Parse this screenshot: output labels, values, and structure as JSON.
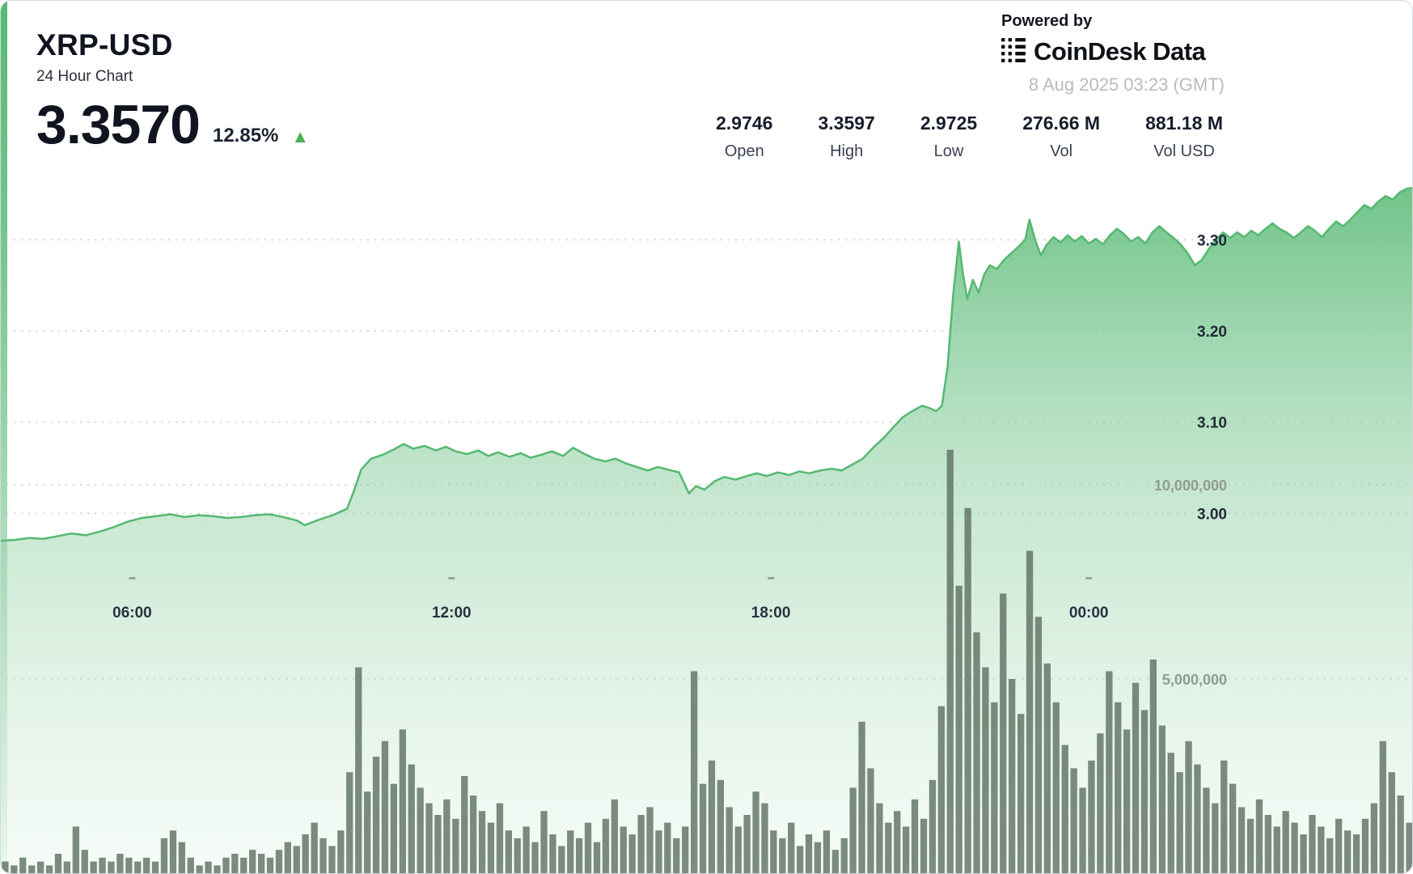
{
  "header": {
    "symbol": "XRP-USD",
    "subtitle": "24 Hour Chart",
    "price": "3.3570",
    "change_percent": "12.85%",
    "change_direction": "up",
    "stats": [
      {
        "value": "2.9746",
        "label": "Open"
      },
      {
        "value": "3.3597",
        "label": "High"
      },
      {
        "value": "2.9725",
        "label": "Low"
      },
      {
        "value": "276.66 M",
        "label": "Vol"
      },
      {
        "value": "881.18 M",
        "label": "Vol USD"
      }
    ]
  },
  "branding": {
    "powered_by": "Powered by",
    "brand": "CoinDesk Data",
    "timestamp": "8 Aug 2025 03:23 (GMT)"
  },
  "icons": {
    "up_arrow": "▲"
  },
  "colors": {
    "accent_green": "#4caf50",
    "line_green": "#55b871",
    "area_top": "#57b974",
    "area_mid": "#8fd0a3",
    "area_bottom": "#eaf6ee",
    "volume_bar": "#5f7164",
    "grid_dot": "#c6cdc6",
    "tick_dash": "#98a59b",
    "text_dark": "#131824",
    "timestamp_gray": "#b7bbc1"
  },
  "chart_data": {
    "type": "area",
    "title": "XRP-USD 24 Hour Chart",
    "grid": "dotted",
    "price_axis": {
      "min": 2.94,
      "max": 3.365,
      "ticks": [
        3.0,
        3.1,
        3.2,
        3.3
      ],
      "unit": "USD"
    },
    "volume_axis": {
      "ticks": [
        {
          "value": 5,
          "label": "5,000,000"
        },
        {
          "value": 10,
          "label": "10,000,000"
        }
      ],
      "unit": "volume"
    },
    "x_axis": {
      "ticks": [
        {
          "label": "06:00",
          "f": 0.093
        },
        {
          "label": "12:00",
          "f": 0.319
        },
        {
          "label": "18:00",
          "f": 0.545
        },
        {
          "label": "00:00",
          "f": 0.77
        }
      ]
    },
    "price_series": {
      "name": "XRP-USD price",
      "open": 2.9746,
      "high": 3.3597,
      "low": 2.9725,
      "last": 3.357,
      "points": [
        [
          0,
          2.97
        ],
        [
          0.01,
          2.971
        ],
        [
          0.02,
          2.973
        ],
        [
          0.03,
          2.972
        ],
        [
          0.04,
          2.975
        ],
        [
          0.05,
          2.978
        ],
        [
          0.06,
          2.976
        ],
        [
          0.07,
          2.98
        ],
        [
          0.08,
          2.985
        ],
        [
          0.09,
          2.991
        ],
        [
          0.1,
          2.995
        ],
        [
          0.11,
          2.997
        ],
        [
          0.12,
          2.999
        ],
        [
          0.13,
          2.996
        ],
        [
          0.14,
          2.998
        ],
        [
          0.15,
          2.997
        ],
        [
          0.16,
          2.995
        ],
        [
          0.17,
          2.996
        ],
        [
          0.18,
          2.998
        ],
        [
          0.19,
          2.999
        ],
        [
          0.2,
          2.996
        ],
        [
          0.21,
          2.992
        ],
        [
          0.215,
          2.987
        ],
        [
          0.225,
          2.993
        ],
        [
          0.235,
          2.998
        ],
        [
          0.245,
          3.005
        ],
        [
          0.25,
          3.025
        ],
        [
          0.255,
          3.048
        ],
        [
          0.262,
          3.06
        ],
        [
          0.27,
          3.064
        ],
        [
          0.278,
          3.07
        ],
        [
          0.285,
          3.076
        ],
        [
          0.292,
          3.071
        ],
        [
          0.3,
          3.074
        ],
        [
          0.308,
          3.069
        ],
        [
          0.315,
          3.073
        ],
        [
          0.322,
          3.068
        ],
        [
          0.33,
          3.065
        ],
        [
          0.338,
          3.069
        ],
        [
          0.345,
          3.063
        ],
        [
          0.352,
          3.067
        ],
        [
          0.36,
          3.062
        ],
        [
          0.368,
          3.066
        ],
        [
          0.375,
          3.061
        ],
        [
          0.382,
          3.064
        ],
        [
          0.39,
          3.068
        ],
        [
          0.398,
          3.063
        ],
        [
          0.405,
          3.072
        ],
        [
          0.412,
          3.066
        ],
        [
          0.42,
          3.06
        ],
        [
          0.428,
          3.057
        ],
        [
          0.435,
          3.06
        ],
        [
          0.442,
          3.055
        ],
        [
          0.45,
          3.051
        ],
        [
          0.458,
          3.047
        ],
        [
          0.465,
          3.051
        ],
        [
          0.472,
          3.048
        ],
        [
          0.48,
          3.045
        ],
        [
          0.487,
          3.022
        ],
        [
          0.492,
          3.03
        ],
        [
          0.498,
          3.026
        ],
        [
          0.505,
          3.035
        ],
        [
          0.512,
          3.04
        ],
        [
          0.52,
          3.037
        ],
        [
          0.528,
          3.041
        ],
        [
          0.535,
          3.044
        ],
        [
          0.542,
          3.041
        ],
        [
          0.55,
          3.045
        ],
        [
          0.558,
          3.042
        ],
        [
          0.565,
          3.046
        ],
        [
          0.572,
          3.044
        ],
        [
          0.58,
          3.047
        ],
        [
          0.588,
          3.049
        ],
        [
          0.595,
          3.047
        ],
        [
          0.602,
          3.053
        ],
        [
          0.61,
          3.06
        ],
        [
          0.618,
          3.073
        ],
        [
          0.625,
          3.083
        ],
        [
          0.632,
          3.095
        ],
        [
          0.638,
          3.105
        ],
        [
          0.645,
          3.112
        ],
        [
          0.652,
          3.118
        ],
        [
          0.658,
          3.115
        ],
        [
          0.662,
          3.112
        ],
        [
          0.666,
          3.118
        ],
        [
          0.67,
          3.16
        ],
        [
          0.674,
          3.24
        ],
        [
          0.678,
          3.298
        ],
        [
          0.681,
          3.262
        ],
        [
          0.684,
          3.235
        ],
        [
          0.688,
          3.256
        ],
        [
          0.692,
          3.242
        ],
        [
          0.696,
          3.262
        ],
        [
          0.7,
          3.272
        ],
        [
          0.705,
          3.268
        ],
        [
          0.71,
          3.278
        ],
        [
          0.715,
          3.285
        ],
        [
          0.72,
          3.292
        ],
        [
          0.725,
          3.3
        ],
        [
          0.728,
          3.322
        ],
        [
          0.732,
          3.3
        ],
        [
          0.736,
          3.283
        ],
        [
          0.74,
          3.294
        ],
        [
          0.745,
          3.303
        ],
        [
          0.75,
          3.297
        ],
        [
          0.755,
          3.305
        ],
        [
          0.76,
          3.298
        ],
        [
          0.765,
          3.304
        ],
        [
          0.77,
          3.296
        ],
        [
          0.775,
          3.301
        ],
        [
          0.78,
          3.295
        ],
        [
          0.785,
          3.305
        ],
        [
          0.79,
          3.312
        ],
        [
          0.795,
          3.306
        ],
        [
          0.8,
          3.298
        ],
        [
          0.805,
          3.303
        ],
        [
          0.81,
          3.296
        ],
        [
          0.815,
          3.308
        ],
        [
          0.82,
          3.315
        ],
        [
          0.825,
          3.308
        ],
        [
          0.83,
          3.302
        ],
        [
          0.835,
          3.295
        ],
        [
          0.84,
          3.285
        ],
        [
          0.845,
          3.272
        ],
        [
          0.85,
          3.278
        ],
        [
          0.855,
          3.29
        ],
        [
          0.86,
          3.3
        ],
        [
          0.865,
          3.308
        ],
        [
          0.87,
          3.302
        ],
        [
          0.875,
          3.308
        ],
        [
          0.88,
          3.303
        ],
        [
          0.885,
          3.31
        ],
        [
          0.89,
          3.305
        ],
        [
          0.895,
          3.312
        ],
        [
          0.9,
          3.318
        ],
        [
          0.905,
          3.312
        ],
        [
          0.91,
          3.308
        ],
        [
          0.915,
          3.302
        ],
        [
          0.92,
          3.308
        ],
        [
          0.925,
          3.315
        ],
        [
          0.93,
          3.31
        ],
        [
          0.935,
          3.303
        ],
        [
          0.94,
          3.312
        ],
        [
          0.945,
          3.32
        ],
        [
          0.95,
          3.315
        ],
        [
          0.955,
          3.322
        ],
        [
          0.96,
          3.33
        ],
        [
          0.965,
          3.338
        ],
        [
          0.97,
          3.334
        ],
        [
          0.975,
          3.342
        ],
        [
          0.98,
          3.348
        ],
        [
          0.985,
          3.344
        ],
        [
          0.99,
          3.352
        ],
        [
          0.995,
          3.356
        ],
        [
          1,
          3.357
        ]
      ]
    },
    "volume_series": {
      "name": "Volume",
      "unit_scale": "millions",
      "total_vol": "276.66 M",
      "total_vol_usd": "881.18 M",
      "bar_values_m": [
        0.3,
        0.2,
        0.4,
        0.2,
        0.3,
        0.2,
        0.5,
        0.3,
        1.2,
        0.6,
        0.3,
        0.4,
        0.3,
        0.5,
        0.4,
        0.3,
        0.4,
        0.3,
        0.9,
        1.1,
        0.8,
        0.4,
        0.2,
        0.3,
        0.2,
        0.4,
        0.5,
        0.4,
        0.6,
        0.5,
        0.4,
        0.6,
        0.8,
        0.7,
        1.0,
        1.3,
        0.9,
        0.7,
        1.1,
        2.6,
        5.3,
        2.1,
        3.0,
        3.4,
        2.3,
        3.7,
        2.8,
        2.2,
        1.8,
        1.5,
        1.9,
        1.4,
        2.5,
        2.0,
        1.6,
        1.3,
        1.8,
        1.1,
        0.9,
        1.2,
        0.8,
        1.6,
        1.0,
        0.7,
        1.1,
        0.9,
        1.3,
        0.8,
        1.4,
        1.9,
        1.2,
        1.0,
        1.5,
        1.7,
        1.1,
        1.3,
        0.9,
        1.2,
        5.2,
        2.3,
        2.9,
        2.4,
        1.7,
        1.2,
        1.5,
        2.1,
        1.8,
        1.1,
        0.9,
        1.3,
        0.7,
        1.0,
        0.8,
        1.1,
        0.6,
        0.9,
        2.2,
        3.9,
        2.7,
        1.8,
        1.3,
        1.6,
        1.2,
        1.9,
        1.4,
        2.4,
        4.3,
        10.9,
        7.4,
        9.4,
        6.2,
        5.3,
        4.4,
        7.2,
        5.0,
        4.1,
        8.3,
        6.6,
        5.4,
        4.4,
        3.3,
        2.7,
        2.2,
        2.9,
        3.6,
        5.2,
        4.4,
        3.7,
        4.9,
        4.2,
        5.5,
        3.8,
        3.1,
        2.6,
        3.4,
        2.8,
        2.2,
        1.8,
        2.9,
        2.3,
        1.7,
        1.4,
        1.9,
        1.5,
        1.2,
        1.6,
        1.3,
        1.0,
        1.5,
        1.2,
        0.9,
        1.4,
        1.1,
        1.0,
        1.4,
        1.8,
        3.4,
        2.6,
        2.0,
        1.3
      ]
    }
  }
}
